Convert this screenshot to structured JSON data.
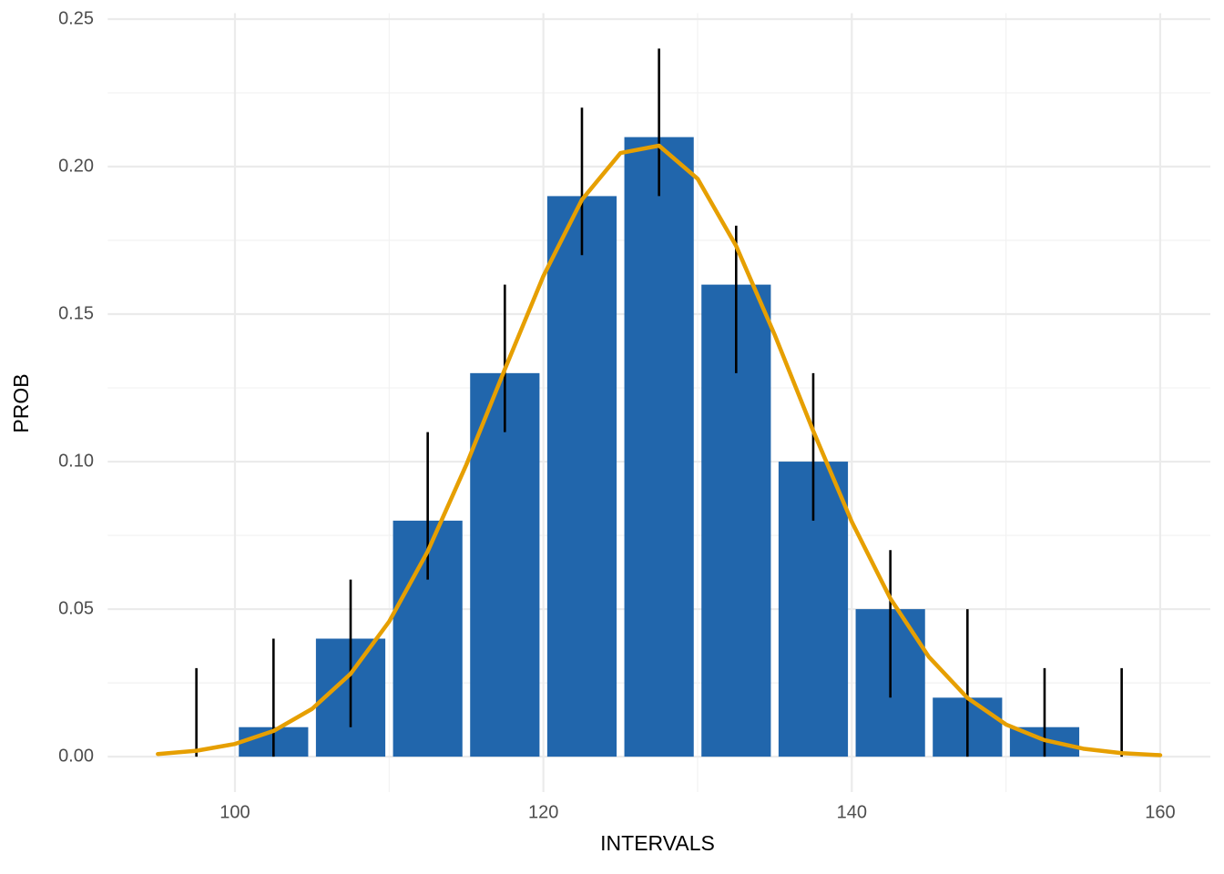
{
  "chart_data": {
    "type": "bar",
    "x_label": "INTERVALS",
    "y_label": "PROB",
    "categories": [
      97.5,
      102.5,
      107.5,
      112.5,
      117.5,
      122.5,
      127.5,
      132.5,
      137.5,
      142.5,
      147.5,
      152.5,
      157.5
    ],
    "bar_width": 4.5,
    "series": [
      {
        "name": "PROB",
        "color": "#2166ac",
        "values": [
          0,
          0.01,
          0.04,
          0.08,
          0.13,
          0.19,
          0.21,
          0.16,
          0.1,
          0.05,
          0.02,
          0.01,
          0
        ],
        "lower": [
          0,
          0,
          0.01,
          0.06,
          0.11,
          0.17,
          0.19,
          0.13,
          0.08,
          0.02,
          0,
          0,
          0
        ],
        "upper": [
          0.03,
          0.04,
          0.06,
          0.11,
          0.16,
          0.22,
          0.24,
          0.18,
          0.13,
          0.07,
          0.05,
          0.03,
          0.03
        ],
        "error_color": "#000000"
      }
    ],
    "curve": {
      "color": "#e69f00",
      "x": [
        95,
        97.5,
        100,
        102.5,
        105,
        107.5,
        110,
        112.5,
        115,
        117.5,
        120,
        122.5,
        125,
        127.5,
        130,
        132.5,
        135,
        137.5,
        140,
        142.5,
        145,
        147.5,
        150,
        152.5,
        155,
        157.5,
        160
      ],
      "values": [
        0.0009,
        0.002,
        0.0043,
        0.0087,
        0.0162,
        0.0281,
        0.0458,
        0.0696,
        0.0989,
        0.1313,
        0.1629,
        0.1888,
        0.2046,
        0.2071,
        0.1959,
        0.1731,
        0.143,
        0.1104,
        0.0796,
        0.0536,
        0.0338,
        0.0199,
        0.0109,
        0.0056,
        0.0027,
        0.0012,
        0.0005
      ]
    },
    "xlim": [
      91.75,
      163.25
    ],
    "ylim": [
      -0.012,
      0.252
    ],
    "xticks": [
      100,
      120,
      140,
      160
    ],
    "yticks": [
      {
        "value": 0,
        "label": "0.00"
      },
      {
        "value": 0.05,
        "label": "0.05"
      },
      {
        "value": 0.1,
        "label": "0.10"
      },
      {
        "value": 0.15,
        "label": "0.15"
      },
      {
        "value": 0.2,
        "label": "0.20"
      },
      {
        "value": 0.25,
        "label": "0.25"
      }
    ],
    "x_minor_ticks": [
      110,
      130,
      150
    ],
    "y_minor_ticks": [
      0.025,
      0.075,
      0.125,
      0.175,
      0.225
    ],
    "grid": true
  }
}
